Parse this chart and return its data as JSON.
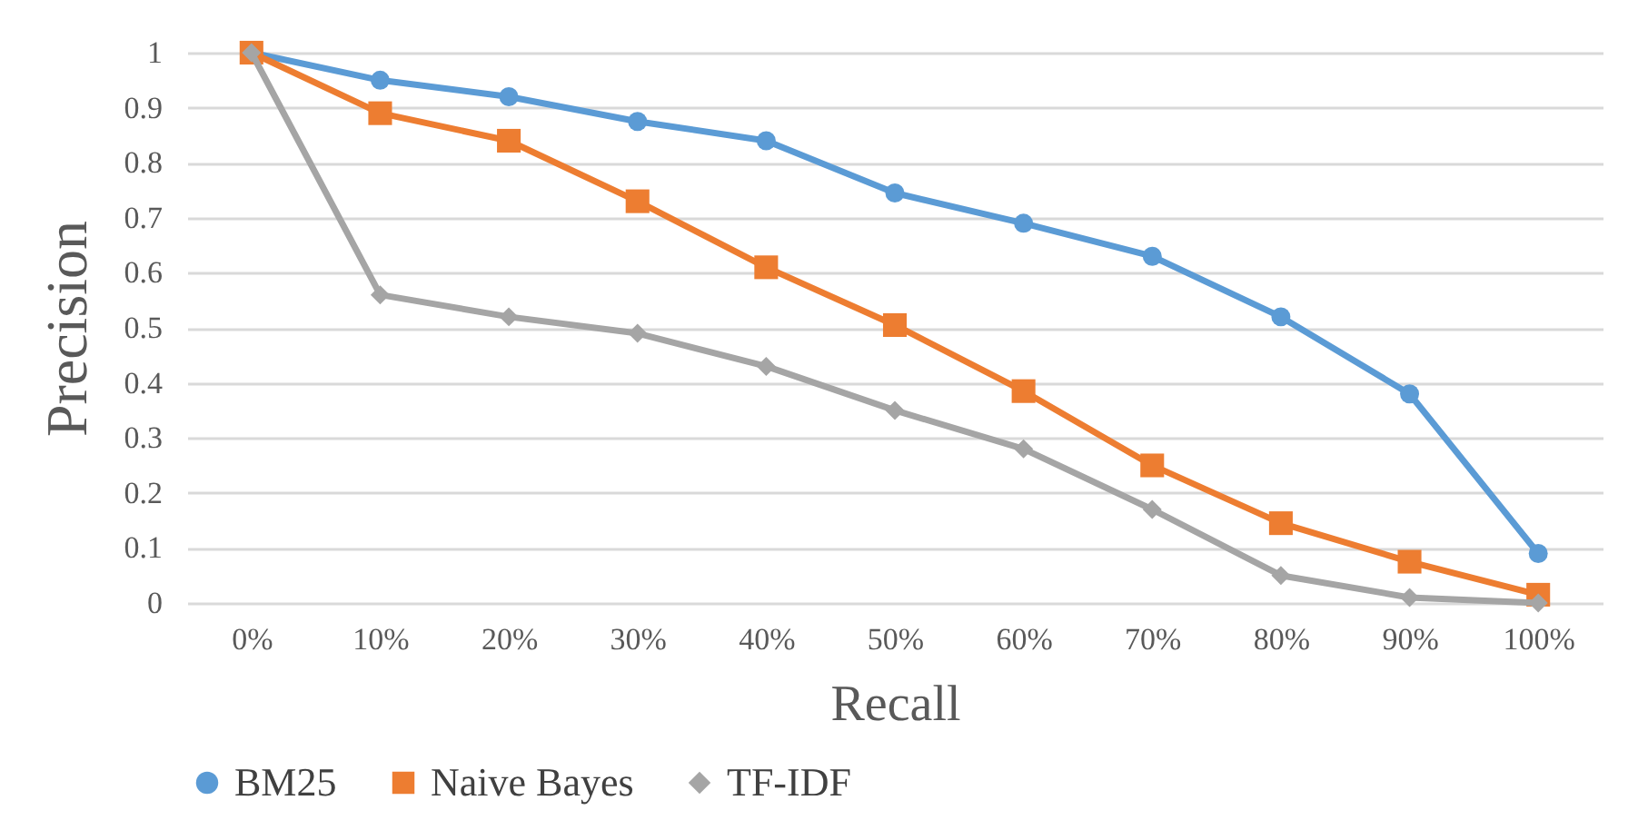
{
  "chart_data": {
    "type": "line",
    "xlabel": "Recall",
    "ylabel": "Precision",
    "categories": [
      "0%",
      "10%",
      "20%",
      "30%",
      "40%",
      "50%",
      "60%",
      "70%",
      "80%",
      "90%",
      "100%"
    ],
    "series": [
      {
        "name": "BM25",
        "color": "#5b9bd5",
        "marker": "circle",
        "values": [
          1,
          0.95,
          0.92,
          0.875,
          0.84,
          0.745,
          0.69,
          0.63,
          0.52,
          0.38,
          0.09
        ]
      },
      {
        "name": "Naive Bayes",
        "color": "#ed7d31",
        "marker": "square",
        "values": [
          1,
          0.89,
          0.84,
          0.73,
          0.61,
          0.505,
          0.385,
          0.25,
          0.145,
          0.075,
          0.015
        ]
      },
      {
        "name": "TF-IDF",
        "color": "#a5a5a5",
        "marker": "diamond",
        "values": [
          1,
          0.56,
          0.52,
          0.49,
          0.43,
          0.35,
          0.28,
          0.17,
          0.05,
          0.01,
          0
        ]
      }
    ],
    "ylim": [
      0,
      1
    ],
    "yticks": [
      0,
      0.1,
      0.2,
      0.3,
      0.4,
      0.5,
      0.6,
      0.7,
      0.8,
      0.9,
      1
    ],
    "grid": "y",
    "legend": "bottom",
    "line_style": "solid"
  }
}
